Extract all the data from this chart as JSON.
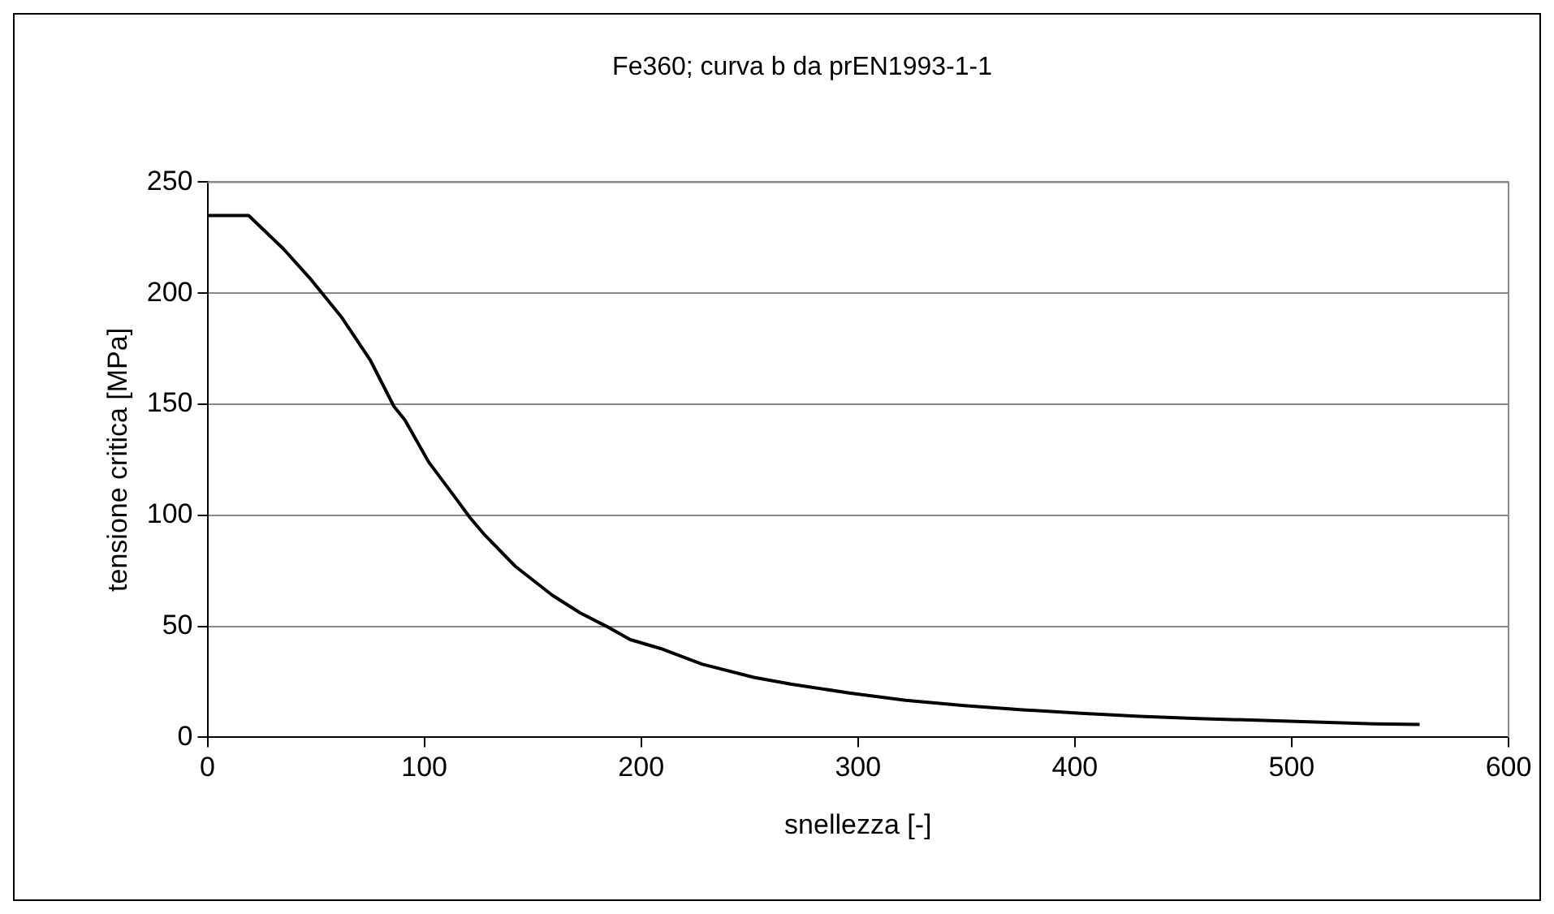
{
  "chart_data": {
    "type": "line",
    "title": "Fe360; curva b da prEN1993-1-1",
    "xlabel": "snellezza [-]",
    "ylabel": "tensione critica [MPa]",
    "x": [
      0,
      19,
      35,
      47,
      62,
      75,
      86,
      91,
      102,
      115,
      121,
      128,
      142,
      159,
      172,
      184,
      195,
      209,
      228,
      252,
      269,
      296,
      322,
      349,
      376,
      403,
      430,
      457,
      484,
      511,
      538,
      559
    ],
    "series": [
      {
        "color": "#000000",
        "values": [
          235,
          235,
          220,
          207,
          189,
          170,
          149,
          143,
          124,
          107,
          99,
          91,
          77,
          64,
          56,
          50,
          44,
          40,
          33,
          27,
          24,
          20,
          16.7,
          14.3,
          12.4,
          10.8,
          9.5,
          8.5,
          7.7,
          6.9,
          6.1,
          5.8
        ]
      }
    ],
    "xlim": [
      0,
      600
    ],
    "xticks": [
      0,
      100,
      200,
      300,
      400,
      500,
      600
    ],
    "ylim": [
      0,
      250
    ],
    "yticks": [
      0,
      50,
      100,
      150,
      200,
      250
    ],
    "grid": "y",
    "legend": false,
    "marker": "none",
    "line_style": "solid"
  }
}
